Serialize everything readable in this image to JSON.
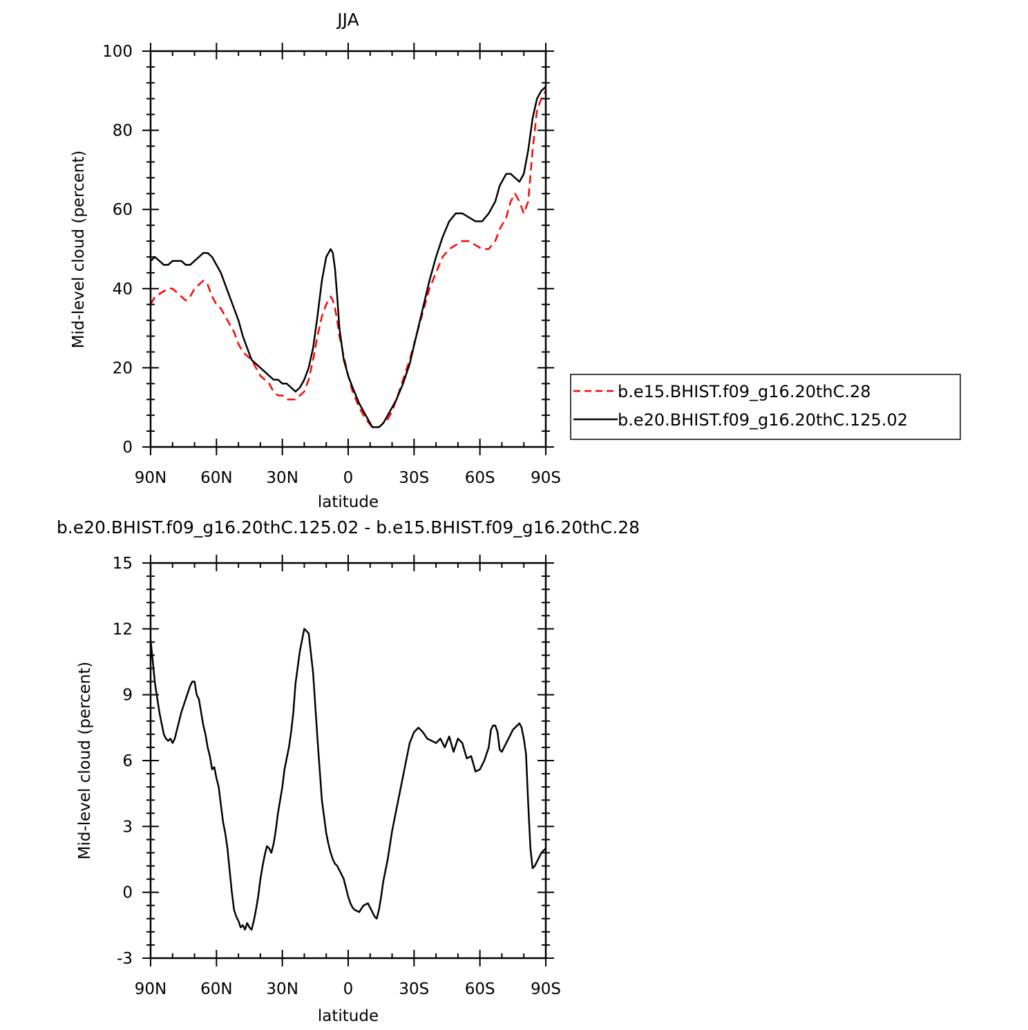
{
  "chart_data": [
    {
      "type": "line",
      "title": "JJA",
      "xlabel": "latitude",
      "ylabel": "Mid-level cloud (percent)",
      "xlim": [
        90,
        -90
      ],
      "ylim": [
        0,
        100
      ],
      "xticks": [
        90,
        60,
        30,
        0,
        -30,
        -60,
        -90
      ],
      "xtick_labels": [
        "90N",
        "60N",
        "30N",
        "0",
        "30S",
        "60S",
        "90S"
      ],
      "yticks": [
        0,
        20,
        40,
        60,
        80,
        100
      ],
      "ytick_labels": [
        "0",
        "20",
        "40",
        "60",
        "80",
        "100"
      ],
      "grid": false,
      "legend_position": "right",
      "series": [
        {
          "name": "b.e15.BHIST.f09_g16.20thC.28",
          "color": "#ff0000",
          "style": "dashed",
          "x": [
            90,
            88,
            85,
            82,
            80,
            78,
            76,
            74,
            72,
            70,
            68,
            66,
            64,
            62,
            60,
            58,
            55,
            52,
            50,
            48,
            46,
            44,
            42,
            40,
            38,
            36,
            34,
            32,
            30,
            28,
            26,
            24,
            22,
            20,
            18,
            16,
            14,
            12,
            10,
            8,
            7,
            6,
            5,
            4,
            2,
            0,
            -2,
            -5,
            -8,
            -11,
            -14,
            -16,
            -18,
            -20,
            -22,
            -25,
            -28,
            -31,
            -34,
            -37,
            -40,
            -43,
            -46,
            -49,
            -52,
            -55,
            -58,
            -61,
            -64,
            -67,
            -69,
            -72,
            -74,
            -76,
            -78,
            -80,
            -82,
            -84,
            -86,
            -88,
            -90
          ],
          "values": [
            36,
            38,
            39,
            40,
            40,
            39,
            38,
            37,
            38,
            40,
            41,
            42,
            41,
            38,
            36,
            35,
            32,
            29,
            26,
            24,
            23,
            22,
            20,
            18,
            17,
            16,
            14,
            13,
            13,
            12,
            12,
            12,
            13,
            14,
            17,
            22,
            28,
            33,
            36,
            38,
            37,
            35,
            32,
            28,
            23,
            18,
            14,
            10,
            7,
            5,
            5,
            6,
            7,
            9,
            12,
            17,
            22,
            28,
            34,
            40,
            44,
            48,
            50,
            51,
            52,
            52,
            51,
            50,
            50,
            52,
            55,
            58,
            62,
            64,
            62,
            59,
            62,
            75,
            85,
            88,
            90
          ]
        },
        {
          "name": "b.e20.BHIST.f09_g16.20thC.125.02",
          "color": "#000000",
          "style": "solid",
          "x": [
            90,
            88,
            86,
            84,
            82,
            80,
            78,
            76,
            74,
            72,
            70,
            68,
            66,
            64,
            62,
            60,
            58,
            56,
            54,
            52,
            50,
            48,
            46,
            44,
            42,
            40,
            38,
            36,
            34,
            32,
            30,
            28,
            26,
            24,
            22,
            20,
            18,
            16,
            14,
            12,
            10,
            8,
            7,
            6,
            5,
            4,
            2,
            0,
            -2,
            -5,
            -8,
            -11,
            -14,
            -16,
            -18,
            -20,
            -22,
            -25,
            -28,
            -31,
            -34,
            -37,
            -40,
            -43,
            -46,
            -49,
            -52,
            -55,
            -58,
            -61,
            -64,
            -67,
            -69,
            -72,
            -74,
            -76,
            -78,
            -80,
            -82,
            -84,
            -86,
            -88,
            -90
          ],
          "values": [
            47,
            48,
            47,
            46,
            46,
            47,
            47,
            47,
            46,
            46,
            47,
            48,
            49,
            49,
            48,
            46,
            44,
            41,
            38,
            35,
            32,
            28,
            25,
            22,
            21,
            20,
            19,
            18,
            17,
            17,
            16,
            16,
            15,
            14,
            15,
            17,
            20,
            25,
            33,
            42,
            48,
            50,
            49,
            45,
            38,
            30,
            22,
            18,
            15,
            11,
            8,
            5,
            5,
            6,
            8,
            10,
            12,
            16,
            21,
            28,
            35,
            42,
            48,
            53,
            57,
            59,
            59,
            58,
            57,
            57,
            59,
            62,
            66,
            69,
            69,
            68,
            67,
            69,
            75,
            83,
            88,
            90,
            91
          ]
        }
      ]
    },
    {
      "type": "line",
      "title": "b.e20.BHIST.f09_g16.20thC.125.02 - b.e15.BHIST.f09_g16.20thC.28",
      "xlabel": "latitude",
      "ylabel": "Mid-level cloud (percent)",
      "xlim": [
        90,
        -90
      ],
      "ylim": [
        -3,
        15
      ],
      "xticks": [
        90,
        60,
        30,
        0,
        -30,
        -60,
        -90
      ],
      "xtick_labels": [
        "90N",
        "60N",
        "30N",
        "0",
        "30S",
        "60S",
        "90S"
      ],
      "yticks": [
        -3,
        0,
        3,
        6,
        9,
        12,
        15
      ],
      "ytick_labels": [
        "-3",
        "0",
        "3",
        "6",
        "9",
        "12",
        "15"
      ],
      "grid": false,
      "series": [
        {
          "color": "#000000",
          "style": "solid",
          "x": [
            90,
            88,
            86,
            84,
            83,
            82,
            81,
            80,
            79,
            78,
            76,
            74,
            72,
            71,
            70,
            69,
            68,
            67,
            66,
            65,
            64,
            63,
            62,
            61,
            60,
            59,
            58,
            57,
            56,
            55,
            54,
            53,
            52,
            51,
            50,
            49,
            48,
            47,
            46,
            45,
            44,
            43,
            42,
            41,
            40,
            39,
            38,
            37,
            36,
            35,
            34,
            33,
            32,
            31,
            30,
            29,
            28,
            27,
            26,
            25,
            24,
            22,
            20,
            18,
            16,
            14,
            12,
            10,
            9,
            8,
            7,
            6,
            5,
            4,
            3,
            2,
            1,
            0,
            -1,
            -2,
            -3,
            -5,
            -7,
            -9,
            -10,
            -11,
            -12,
            -13,
            -14,
            -15,
            -16,
            -18,
            -20,
            -22,
            -24,
            -26,
            -28,
            -30,
            -32,
            -34,
            -36,
            -38,
            -40,
            -42,
            -44,
            -46,
            -48,
            -50,
            -52,
            -54,
            -56,
            -58,
            -60,
            -62,
            -64,
            -65,
            -66,
            -67,
            -68,
            -69,
            -70,
            -71,
            -72,
            -73,
            -74,
            -75,
            -76,
            -77,
            -78,
            -79,
            -80,
            -81,
            -82,
            -83,
            -84,
            -85,
            -86,
            -87,
            -88,
            -89,
            -90
          ],
          "values": [
            11.5,
            9.5,
            8.2,
            7.2,
            7.0,
            6.9,
            7.0,
            6.8,
            7.0,
            7.4,
            8.2,
            8.8,
            9.4,
            9.6,
            9.6,
            9.0,
            8.8,
            8.2,
            7.6,
            7.2,
            6.6,
            6.2,
            5.6,
            5.7,
            5.2,
            4.8,
            4.0,
            3.2,
            2.7,
            2.0,
            1.0,
            0.0,
            -0.8,
            -1.1,
            -1.3,
            -1.6,
            -1.5,
            -1.7,
            -1.4,
            -1.6,
            -1.7,
            -1.3,
            -0.8,
            -0.2,
            0.6,
            1.2,
            1.7,
            2.1,
            2.0,
            1.8,
            2.2,
            2.8,
            3.6,
            4.2,
            4.8,
            5.6,
            6.1,
            6.6,
            7.3,
            8.2,
            9.5,
            11.0,
            12.0,
            11.8,
            10.0,
            7.0,
            4.2,
            2.7,
            2.2,
            1.8,
            1.5,
            1.3,
            1.2,
            1.0,
            0.8,
            0.6,
            0.2,
            -0.2,
            -0.5,
            -0.7,
            -0.8,
            -0.9,
            -0.6,
            -0.5,
            -0.7,
            -0.9,
            -1.1,
            -1.2,
            -0.8,
            -0.2,
            0.5,
            1.5,
            2.8,
            3.8,
            4.8,
            5.8,
            6.8,
            7.3,
            7.5,
            7.3,
            7.0,
            6.9,
            6.8,
            7.0,
            6.6,
            7.1,
            6.4,
            7.0,
            6.8,
            6.1,
            6.2,
            5.5,
            5.6,
            6.0,
            6.6,
            7.4,
            7.6,
            7.6,
            7.3,
            6.5,
            6.4,
            6.6,
            6.8,
            7.0,
            7.2,
            7.4,
            7.5,
            7.6,
            7.7,
            7.5,
            7.0,
            6.3,
            4.0,
            2.0,
            1.1,
            1.2,
            1.4,
            1.6,
            1.8,
            1.9,
            2.0
          ]
        }
      ]
    }
  ]
}
